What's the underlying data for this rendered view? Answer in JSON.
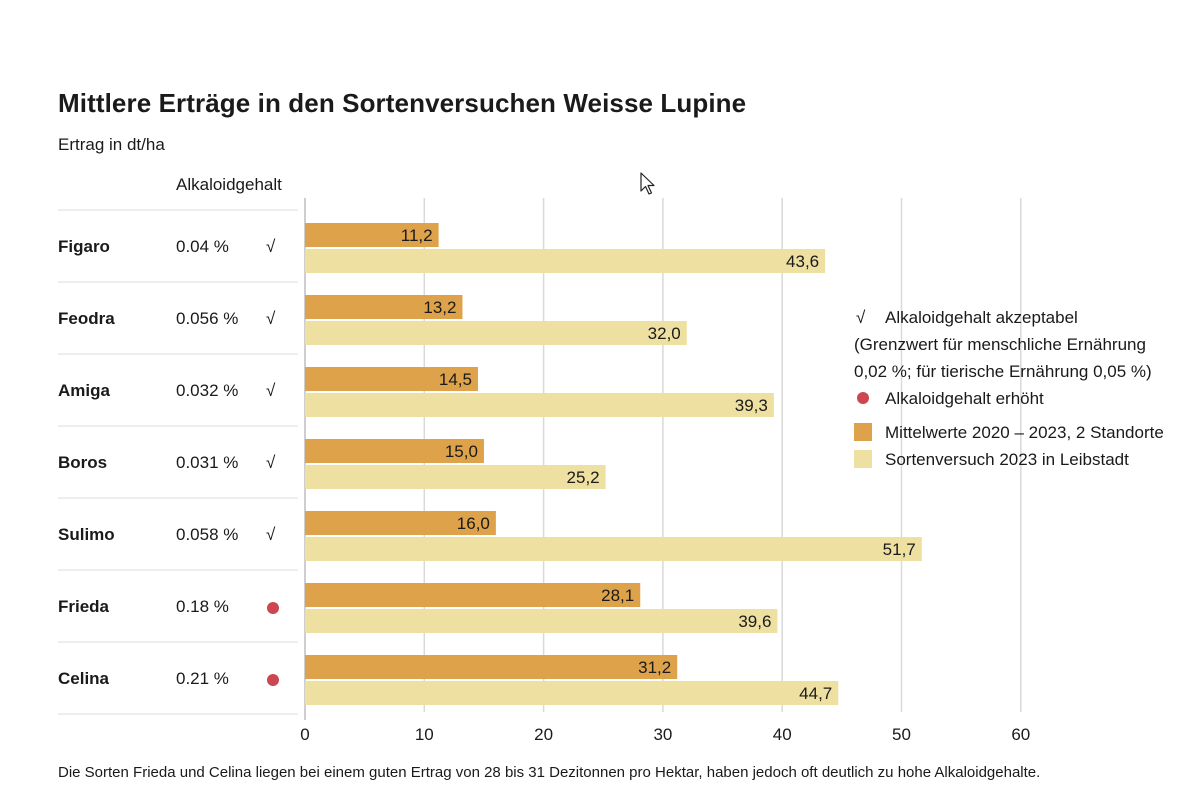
{
  "title": "Mittlere Erträge in den Sortenversuchen Weisse Lupine",
  "subtitle": "Ertrag in dt/ha",
  "alkaloid_header": "Alkaloidgehalt",
  "footnote": "Die Sorten Frieda und Celina liegen bei einem guten Ertrag von 28 bis 31 Dezitonnen pro Hektar, haben jedoch oft deutlich zu hohe Alkaloidgehalte.",
  "legend": {
    "check_symbol": "√",
    "acceptable_label": "Alkaloidgehalt akzeptabel",
    "acceptable_note_1": "(Grenzwert für menschliche Ernährung",
    "acceptable_note_2": "0,02 %; für tierische Ernährung 0,05 %)",
    "elevated_label": "Alkaloidgehalt erhöht",
    "series_1_label": "Mittelwerte 2020 – 2023, 2 Standorte",
    "series_2_label": "Sortenversuch 2023 in Leibstadt"
  },
  "colors": {
    "series_1": "#dea24a",
    "series_2": "#ede0a0",
    "elevated_dot": "#cc4752",
    "grid": "#d9d9d9",
    "row_divider": "#e4e4e4"
  },
  "chart_data": {
    "type": "bar",
    "orientation": "horizontal",
    "title": "Mittlere Erträge in den Sortenversuchen Weisse Lupine",
    "subtitle": "Ertrag in dt/ha",
    "categories": [
      "Figaro",
      "Feodra",
      "Amiga",
      "Boros",
      "Sulimo",
      "Frieda",
      "Celina"
    ],
    "alkaloid": [
      "0.04 %",
      "0.056 %",
      "0.032 %",
      "0.031 %",
      "0.058 %",
      "0.18 %",
      "0.21 %"
    ],
    "alkaloid_status": [
      "acceptable",
      "acceptable",
      "acceptable",
      "acceptable",
      "acceptable",
      "elevated",
      "elevated"
    ],
    "series": [
      {
        "name": "Mittelwerte 2020 – 2023, 2 Standorte",
        "values": [
          11.2,
          13.2,
          14.5,
          15.0,
          16.0,
          28.1,
          31.2
        ],
        "labels": [
          "11,2",
          "13,2",
          "14,5",
          "15,0",
          "16,0",
          "28,1",
          "31,2"
        ]
      },
      {
        "name": "Sortenversuch 2023 in Leibstadt",
        "values": [
          43.6,
          32.0,
          39.3,
          25.2,
          51.7,
          39.6,
          44.7
        ],
        "labels": [
          "43,6",
          "32,0",
          "39,3",
          "25,2",
          "51,7",
          "39,6",
          "44,7"
        ]
      }
    ],
    "xlim": [
      0,
      60
    ],
    "xticks": [
      0,
      10,
      20,
      30,
      40,
      50,
      60
    ],
    "grid": true,
    "legend_position": "right"
  }
}
